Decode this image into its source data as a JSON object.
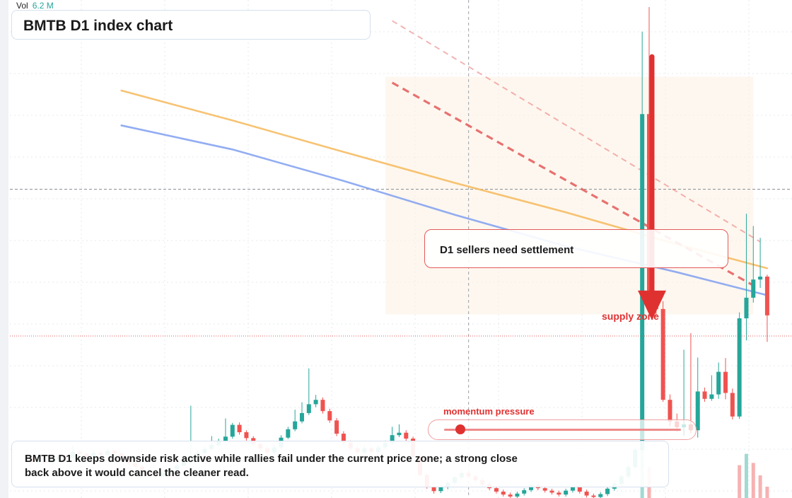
{
  "header": {
    "vol_label": "Vol",
    "vol_value": "6.2 M",
    "title": "BMTB D1 index chart"
  },
  "annotations": {
    "callout": "D1 sellers need settlement",
    "zone_label": "supply zone",
    "momentum_label": "momentum pressure",
    "momentum_level": 0.05,
    "note": "BMTB D1 keeps downside risk active while rallies fail under the current price zone; a strong close back above it would cancel the cleaner read."
  },
  "colors": {
    "up": "#26a69a",
    "down": "#ef5350",
    "ma_fast": "#f6b85a",
    "ma_slow": "#7f9ff0",
    "resistance": "#e45a5a",
    "arrow": "#e03131"
  },
  "chart_data": {
    "type": "candlestick",
    "title": "BMTB D1 index chart",
    "xlabel": "",
    "ylabel": "",
    "grid": true,
    "ylim": [
      0,
      100
    ],
    "x_count": 107,
    "candles": [
      [
        0,
        8.3,
        7.3,
        8.6,
        6.9
      ],
      [
        1,
        7.3,
        7.6,
        8.1,
        7.0
      ],
      [
        2,
        7.6,
        7.2,
        7.9,
        6.8
      ],
      [
        3,
        7.2,
        7.9,
        8.4,
        6.9
      ],
      [
        4,
        7.9,
        8.6,
        9.1,
        7.6
      ],
      [
        5,
        8.6,
        8.2,
        8.9,
        7.8
      ],
      [
        6,
        8.2,
        9.4,
        10.6,
        7.9
      ],
      [
        7,
        9.4,
        9.0,
        9.8,
        8.5
      ],
      [
        8,
        9.0,
        8.4,
        9.2,
        8.0
      ],
      [
        9,
        8.4,
        9.2,
        9.9,
        8.1
      ],
      [
        10,
        9.2,
        8.8,
        9.6,
        8.3
      ],
      [
        11,
        8.8,
        9.6,
        10.2,
        8.5
      ],
      [
        12,
        9.6,
        9.1,
        9.9,
        8.7
      ],
      [
        13,
        9.1,
        8.3,
        9.3,
        7.9
      ],
      [
        14,
        8.3,
        7.1,
        8.5,
        6.8
      ],
      [
        15,
        7.1,
        6.4,
        7.3,
        6.0
      ],
      [
        16,
        6.4,
        5.6,
        6.7,
        5.2
      ],
      [
        17,
        5.6,
        4.8,
        5.8,
        4.4
      ],
      [
        18,
        4.8,
        4.4,
        5.2,
        4.0
      ],
      [
        19,
        4.4,
        5.2,
        5.7,
        4.1
      ],
      [
        20,
        5.2,
        5.8,
        6.3,
        4.9
      ],
      [
        21,
        5.8,
        6.6,
        7.2,
        5.5
      ],
      [
        22,
        6.6,
        7.5,
        8.0,
        6.3
      ],
      [
        23,
        7.5,
        8.3,
        18.8,
        7.2
      ],
      [
        24,
        8.3,
        9.2,
        9.8,
        8.0
      ],
      [
        25,
        9.2,
        10.0,
        10.5,
        8.8
      ],
      [
        26,
        10.0,
        10.8,
        12.6,
        9.6
      ],
      [
        27,
        10.8,
        11.6,
        12.1,
        10.4
      ],
      [
        28,
        11.6,
        12.5,
        16.2,
        11.2
      ],
      [
        29,
        12.5,
        14.9,
        15.3,
        12.1
      ],
      [
        30,
        14.9,
        13.4,
        15.4,
        12.9
      ],
      [
        31,
        13.4,
        12.2,
        13.8,
        11.7
      ],
      [
        32,
        12.2,
        11.0,
        12.6,
        10.6
      ],
      [
        33,
        11.0,
        10.1,
        11.4,
        9.6
      ],
      [
        34,
        10.1,
        9.3,
        10.5,
        8.9
      ],
      [
        35,
        9.3,
        10.3,
        10.8,
        8.9
      ],
      [
        36,
        10.3,
        12.3,
        12.8,
        9.9
      ],
      [
        37,
        12.3,
        14.0,
        14.5,
        12.0
      ],
      [
        38,
        14.0,
        15.6,
        18.0,
        13.6
      ],
      [
        39,
        15.6,
        17.3,
        19.5,
        15.2
      ],
      [
        40,
        17.3,
        19.1,
        26.4,
        16.9
      ],
      [
        41,
        19.1,
        20.0,
        21.0,
        18.5
      ],
      [
        42,
        20.0,
        17.7,
        20.5,
        17.2
      ],
      [
        43,
        17.7,
        15.8,
        18.2,
        15.3
      ],
      [
        44,
        15.8,
        13.1,
        16.3,
        12.6
      ],
      [
        45,
        13.1,
        11.3,
        13.6,
        10.8
      ],
      [
        46,
        11.3,
        10.1,
        11.7,
        9.7
      ],
      [
        47,
        10.1,
        9.3,
        10.5,
        8.8
      ],
      [
        48,
        9.3,
        10.1,
        10.6,
        8.9
      ],
      [
        49,
        10.1,
        9.4,
        10.5,
        9.0
      ],
      [
        50,
        9.4,
        10.3,
        10.8,
        9.0
      ],
      [
        51,
        10.3,
        11.2,
        11.7,
        9.9
      ],
      [
        52,
        11.2,
        12.8,
        14.5,
        10.8
      ],
      [
        53,
        12.8,
        13.3,
        15.0,
        12.4
      ],
      [
        54,
        13.3,
        12.1,
        13.8,
        11.6
      ],
      [
        55,
        12.1,
        8.4,
        12.5,
        8.0
      ],
      [
        56,
        8.4,
        4.7,
        8.8,
        4.3
      ],
      [
        57,
        4.7,
        2.3,
        5.1,
        1.9
      ],
      [
        58,
        2.3,
        1.4,
        2.7,
        0.9
      ],
      [
        59,
        1.4,
        2.2,
        2.6,
        1.0
      ],
      [
        60,
        2.2,
        3.1,
        3.5,
        1.8
      ],
      [
        61,
        3.1,
        4.2,
        4.6,
        2.7
      ],
      [
        62,
        4.2,
        5.1,
        5.5,
        3.8
      ],
      [
        63,
        5.1,
        4.4,
        5.5,
        4.0
      ],
      [
        64,
        4.4,
        3.6,
        4.8,
        3.2
      ],
      [
        65,
        3.6,
        2.8,
        4.0,
        2.4
      ],
      [
        66,
        2.8,
        2.0,
        3.2,
        1.6
      ],
      [
        67,
        2.0,
        1.3,
        2.4,
        0.9
      ],
      [
        68,
        1.3,
        0.7,
        1.7,
        0.3
      ],
      [
        69,
        0.7,
        0.3,
        1.1,
        0.0
      ],
      [
        70,
        0.3,
        0.9,
        1.3,
        0.0
      ],
      [
        71,
        0.9,
        1.6,
        2.0,
        0.5
      ],
      [
        72,
        1.6,
        2.6,
        3.0,
        1.2
      ],
      [
        73,
        2.6,
        2.0,
        3.0,
        1.6
      ],
      [
        74,
        2.0,
        1.5,
        2.4,
        1.1
      ],
      [
        75,
        1.5,
        1.1,
        1.9,
        0.7
      ],
      [
        76,
        1.1,
        0.7,
        1.5,
        0.3
      ],
      [
        77,
        0.7,
        1.5,
        1.9,
        0.3
      ],
      [
        78,
        1.5,
        2.2,
        2.6,
        1.1
      ],
      [
        79,
        2.2,
        1.3,
        2.6,
        0.9
      ],
      [
        80,
        1.3,
        0.5,
        1.7,
        0.1
      ],
      [
        81,
        0.5,
        0.2,
        0.9,
        0.0
      ],
      [
        82,
        0.2,
        0.8,
        1.2,
        0.0
      ],
      [
        83,
        0.8,
        1.9,
        2.3,
        0.4
      ],
      [
        84,
        1.9,
        2.9,
        3.3,
        1.5
      ],
      [
        85,
        2.9,
        4.4,
        4.8,
        2.5
      ],
      [
        86,
        4.4,
        6.3,
        6.7,
        4.0
      ],
      [
        87,
        6.3,
        9.8,
        10.2,
        5.9
      ],
      [
        88,
        9.8,
        78.2,
        95.0,
        9.4
      ],
      [
        89,
        78.2,
        40.9,
        100.0,
        37.8
      ],
      [
        90,
        40.9,
        38.5,
        42.0,
        37.0
      ],
      [
        91,
        38.5,
        20.0,
        40.1,
        19.6
      ],
      [
        92,
        20.0,
        15.6,
        21.1,
        14.6
      ],
      [
        93,
        15.6,
        14.4,
        17.2,
        13.5
      ],
      [
        94,
        14.4,
        15.0,
        30.2,
        12.7
      ],
      [
        95,
        15.0,
        13.8,
        33.6,
        13.2
      ],
      [
        96,
        13.8,
        21.7,
        28.6,
        12.3
      ],
      [
        97,
        21.7,
        20.2,
        22.5,
        19.6
      ],
      [
        98,
        20.2,
        21.1,
        25.0,
        19.8
      ],
      [
        99,
        21.1,
        25.7,
        27.6,
        20.2
      ],
      [
        100,
        25.7,
        21.4,
        28.5,
        20.1
      ],
      [
        101,
        21.4,
        16.6,
        22.3,
        16.0
      ],
      [
        102,
        16.6,
        36.6,
        37.8,
        16.1
      ],
      [
        103,
        36.6,
        40.8,
        57.9,
        32.1
      ],
      [
        104,
        40.8,
        44.5,
        55.4,
        39.8
      ],
      [
        105,
        44.5,
        45.1,
        53.0,
        42.8
      ],
      [
        106,
        45.1,
        37.2,
        45.5,
        31.8
      ]
    ],
    "series": [
      {
        "type": "line",
        "color": "#f6b85a",
        "points": [
          [
            13,
            83.0
          ],
          [
            29,
            76.9
          ],
          [
            45,
            70.5
          ],
          [
            61,
            64.2
          ],
          [
            77,
            58.2
          ],
          [
            93,
            51.7
          ],
          [
            106,
            46.8
          ]
        ]
      },
      {
        "type": "line",
        "color": "#7f9ff0",
        "points": [
          [
            13,
            75.9
          ],
          [
            29,
            71.0
          ],
          [
            45,
            64.6
          ],
          [
            61,
            57.7
          ],
          [
            77,
            51.3
          ],
          [
            93,
            46.0
          ],
          [
            106,
            41.3
          ]
        ]
      }
    ],
    "resistance_lines": [
      {
        "points": [
          [
            52,
            97.2
          ],
          [
            105,
            52.2
          ]
        ],
        "style": "dashed-light"
      },
      {
        "points": [
          [
            52,
            84.6
          ],
          [
            104,
            43.3
          ]
        ],
        "style": "dashed"
      }
    ],
    "levels": [
      {
        "value": 62.9,
        "style": "dashed-gray"
      },
      {
        "value": 33.0,
        "style": "dotted-red"
      }
    ],
    "zone": {
      "x": [
        51,
        104
      ],
      "y": [
        37.4,
        85.8
      ]
    },
    "crosshair_x": 63,
    "arrow": {
      "x": 89,
      "from": 89.9,
      "to": 36.2
    },
    "volume": [
      [
        88,
        0.95,
        "up"
      ],
      [
        89,
        0.55,
        "down"
      ],
      [
        102,
        0.58,
        "down"
      ],
      [
        103,
        0.78,
        "up"
      ],
      [
        104,
        0.62,
        "down"
      ],
      [
        105,
        0.4,
        "down"
      ],
      [
        106,
        0.2,
        "down"
      ]
    ]
  }
}
